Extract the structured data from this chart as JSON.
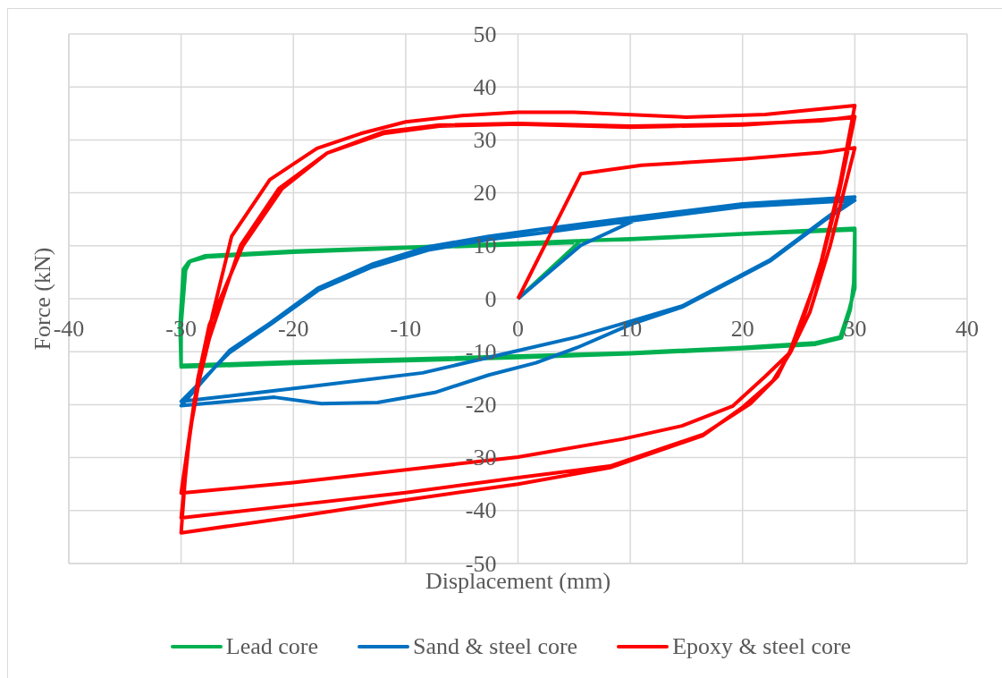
{
  "chart_data": {
    "type": "line",
    "xlabel": "Displacement (mm)",
    "ylabel": "Force (kN)",
    "xlim": [
      -40,
      40
    ],
    "xticks": [
      -40,
      -30,
      -20,
      -10,
      0,
      10,
      20,
      30,
      40
    ],
    "ylim": [
      -50,
      50
    ],
    "yticks": [
      -50,
      -40,
      -30,
      -20,
      -10,
      0,
      10,
      20,
      30,
      40,
      50
    ],
    "grid": true,
    "legend": "bottom",
    "series": [
      {
        "name": "Lead core",
        "color": "#00b050",
        "x": [
          0,
          5.6,
          10,
          20,
          30,
          30,
          29.5,
          28.7,
          26.5,
          20,
          10,
          0,
          -10,
          -20,
          -30,
          -30,
          -29.6,
          -29.2,
          -27.9,
          -20,
          -10,
          0,
          10,
          20,
          30,
          29.9,
          29.6,
          28.8,
          26.5,
          20,
          10,
          0,
          -10,
          -20,
          -30,
          -30.1,
          -29.8,
          -29.3,
          -27.7,
          -20,
          -10,
          0,
          5
        ],
        "values": [
          0,
          11.0,
          11.2,
          12.2,
          13.0,
          2,
          -2,
          -7.2,
          -8.3,
          -9.2,
          -10.2,
          -10.8,
          -11.4,
          -11.9,
          -12.6,
          -5,
          5.4,
          7.1,
          8.1,
          9.0,
          9.7,
          10.5,
          11.3,
          12.3,
          13.3,
          3,
          -2,
          -7.4,
          -8.6,
          -9.4,
          -10.4,
          -11.1,
          -11.7,
          -12.2,
          -12.9,
          -5,
          5.6,
          7.0,
          7.9,
          8.8,
          9.6,
          10.2,
          10.6
        ]
      },
      {
        "name": "Sand & steel core",
        "color": "#0070c0",
        "x": [
          0,
          5.6,
          10.9,
          20,
          30,
          27.3,
          22.5,
          19.1,
          14.6,
          10.1,
          5.3,
          1.6,
          -2.6,
          -7.4,
          -12.5,
          -17.5,
          -21.7,
          -30,
          -25.7,
          -22,
          -17.8,
          -13,
          -8,
          -2.6,
          1.6,
          10,
          20,
          30,
          27.3,
          22.5,
          19.1,
          14.6,
          10.1,
          5.3,
          0,
          -8.5,
          -18.6,
          -30,
          -25.7,
          -22,
          -17.8,
          -13,
          -8,
          -2.6,
          1.6,
          10,
          20,
          30
        ],
        "values": [
          0,
          10.1,
          15.3,
          17.6,
          18.6,
          14.8,
          7.2,
          3.4,
          -1.6,
          -4.8,
          -9.2,
          -12.1,
          -14.4,
          -17.7,
          -19.6,
          -19.8,
          -18.6,
          -20.2,
          -9.8,
          -4.5,
          2.0,
          6.5,
          9.8,
          11.8,
          13.0,
          15.3,
          17.9,
          19.2,
          15.0,
          7.4,
          3.6,
          -1.4,
          -4.2,
          -7.2,
          -9.8,
          -14.0,
          -16.6,
          -19.4,
          -10.2,
          -4.8,
          1.6,
          6.0,
          9.2,
          11.2,
          12.3,
          14.7,
          17.4,
          18.6
        ]
      },
      {
        "name": "Epoxy & steel core",
        "color": "#ff0000",
        "x": [
          0,
          5.6,
          11,
          20,
          27,
          30,
          27.8,
          26,
          24.3,
          22,
          19.1,
          14.6,
          9.3,
          0,
          -10,
          -20,
          -30,
          -28.8,
          -27.5,
          -26,
          -24.7,
          -21.3,
          -17,
          -12,
          -7,
          0,
          10,
          20,
          27,
          30,
          28.6,
          26.8,
          25.5,
          24.2,
          23.1,
          20.7,
          16.5,
          8.2,
          0,
          -10,
          -20,
          -30,
          -29.2,
          -28.1,
          -27.2,
          -25.5,
          -22.1,
          -17.9,
          -14,
          -10,
          -5,
          0,
          5,
          15,
          22,
          30,
          28.7,
          27,
          25.6,
          24.3,
          22.7,
          20,
          16.5,
          8.2,
          0,
          -10,
          -20,
          -30,
          -29.5,
          -28.5,
          -27.5,
          -24.5,
          -21,
          -17,
          -12,
          -7,
          0,
          10,
          20,
          30
        ],
        "values": [
          0,
          23.6,
          25.2,
          26.4,
          27.6,
          28.5,
          10,
          -2.5,
          -10,
          -14.7,
          -20.3,
          -24,
          -26.5,
          -29.9,
          -32.3,
          -34.7,
          -36.7,
          -19,
          -7.6,
          2,
          10.1,
          20.8,
          27.5,
          31.5,
          32.8,
          33.1,
          32.6,
          33.0,
          33.6,
          34.4,
          20,
          5,
          -2.5,
          -10,
          -14.7,
          -19.8,
          -25.6,
          -31.6,
          -33.8,
          -36.6,
          -39,
          -41.4,
          -25,
          -12,
          -3,
          11.8,
          22.5,
          28.4,
          31.2,
          33.4,
          34.6,
          35.2,
          35.2,
          34.3,
          34.8,
          36.5,
          22,
          7,
          -2.5,
          -10,
          -15.5,
          -20.5,
          -25.8,
          -31.9,
          -35.0,
          -38,
          -41.2,
          -44.2,
          -30,
          -15,
          -5,
          10,
          20.8,
          27.5,
          31.2,
          32.6,
          33.0,
          32.4,
          32.8,
          34.2
        ]
      }
    ]
  }
}
